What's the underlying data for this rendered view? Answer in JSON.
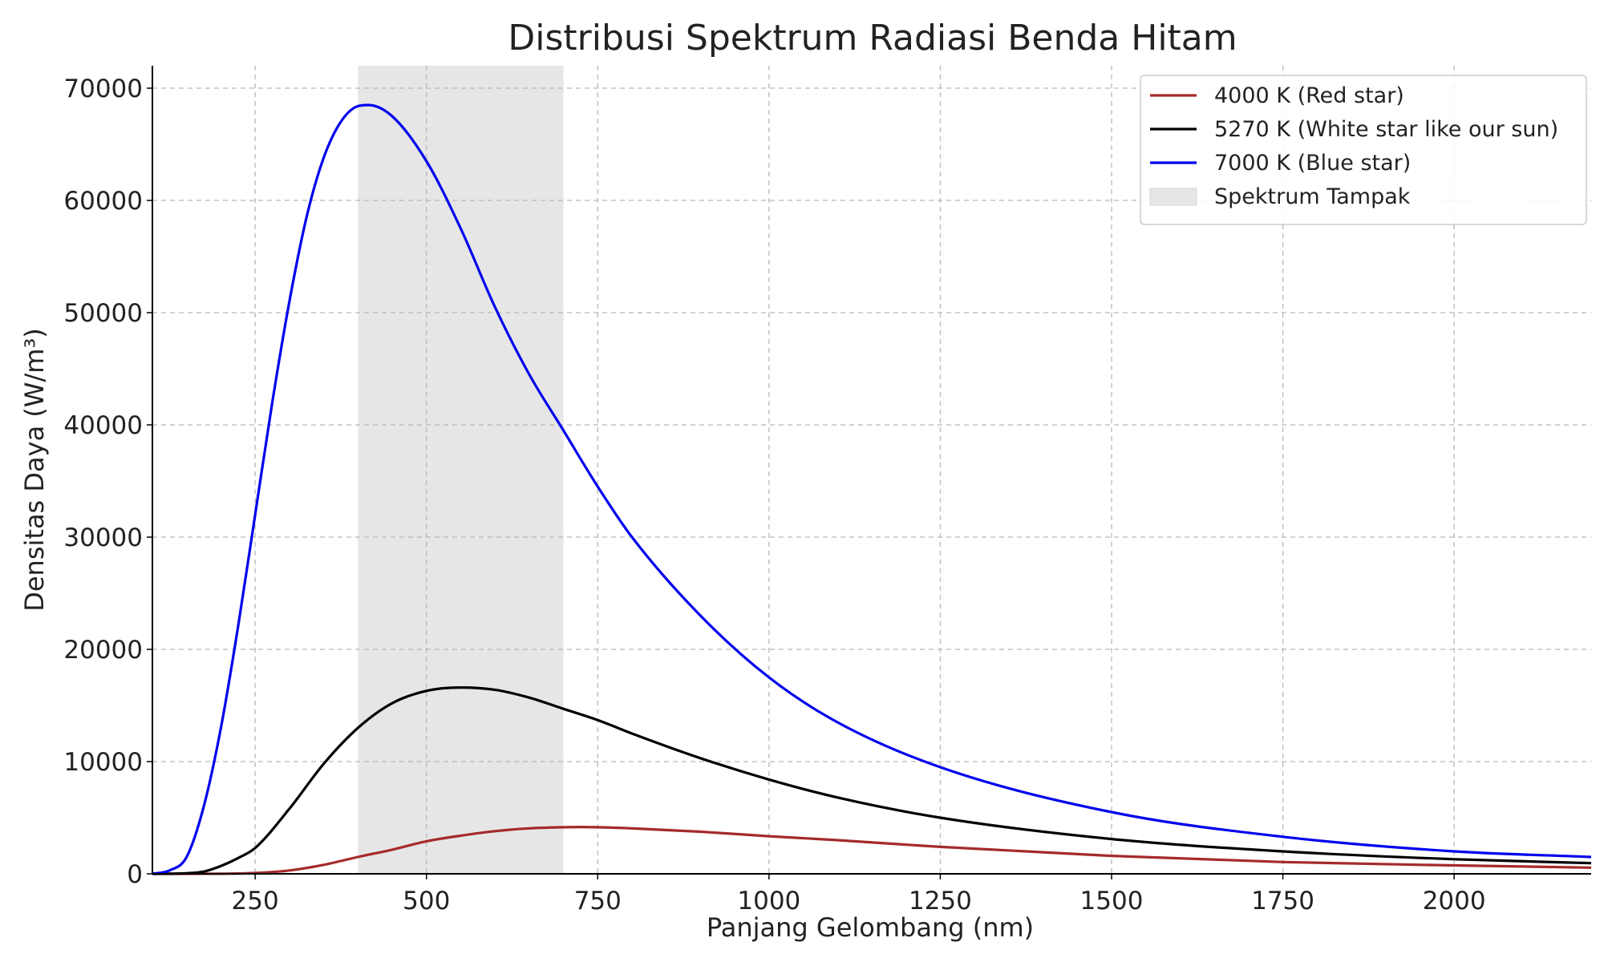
{
  "chart_data": {
    "type": "line",
    "title": "Distribusi Spektrum Radiasi Benda Hitam",
    "xlabel": "Panjang Gelombang (nm)",
    "ylabel": "Densitas Daya (W/m³)",
    "xlim": [
      100,
      2200
    ],
    "ylim": [
      0,
      72000
    ],
    "x_ticks": [
      250,
      500,
      750,
      1000,
      1250,
      1500,
      1750,
      2000
    ],
    "y_ticks": [
      0,
      10000,
      20000,
      30000,
      40000,
      50000,
      60000,
      70000
    ],
    "grid": true,
    "legend_position": "top-right",
    "shaded_region": {
      "label": "Spektrum Tampak",
      "x_start": 400,
      "x_end": 700,
      "color": "#e6e6e6"
    },
    "series": [
      {
        "name": "4000 K (Red star)",
        "color": "#a52a2a",
        "x": [
          100,
          150,
          200,
          250,
          300,
          350,
          400,
          450,
          500,
          550,
          600,
          650,
          700,
          725,
          750,
          800,
          900,
          1000,
          1100,
          1250,
          1500,
          1750,
          2000,
          2200
        ],
        "y": [
          0,
          0,
          10,
          70,
          300,
          800,
          1500,
          2150,
          2900,
          3400,
          3800,
          4050,
          4150,
          4170,
          4150,
          4050,
          3750,
          3350,
          3000,
          2400,
          1600,
          1050,
          750,
          550
        ]
      },
      {
        "name": "5270 K (White star like our sun)",
        "color": "#000000",
        "x": [
          100,
          150,
          175,
          200,
          225,
          250,
          300,
          350,
          400,
          450,
          500,
          550,
          600,
          650,
          700,
          750,
          800,
          900,
          1000,
          1100,
          1250,
          1500,
          1750,
          2000,
          2200
        ],
        "y": [
          0,
          50,
          200,
          700,
          1400,
          2300,
          5800,
          9800,
          13000,
          15200,
          16300,
          16600,
          16400,
          15700,
          14700,
          13700,
          12500,
          10300,
          8400,
          6800,
          5000,
          3100,
          2000,
          1300,
          950
        ]
      },
      {
        "name": "7000 K (Blue star)",
        "color": "#0000ee",
        "x": [
          100,
          125,
          150,
          175,
          200,
          225,
          250,
          275,
          300,
          325,
          350,
          375,
          400,
          415,
          450,
          500,
          550,
          600,
          650,
          700,
          750,
          800,
          900,
          1000,
          1100,
          1250,
          1500,
          1750,
          2000,
          2200
        ],
        "y": [
          0,
          300,
          1500,
          6000,
          13000,
          22000,
          32000,
          42000,
          51000,
          58500,
          63800,
          67000,
          68400,
          68500,
          67500,
          63500,
          57500,
          50500,
          44500,
          39500,
          34500,
          30000,
          23000,
          17500,
          13500,
          9500,
          5500,
          3300,
          2000,
          1500
        ]
      }
    ]
  }
}
